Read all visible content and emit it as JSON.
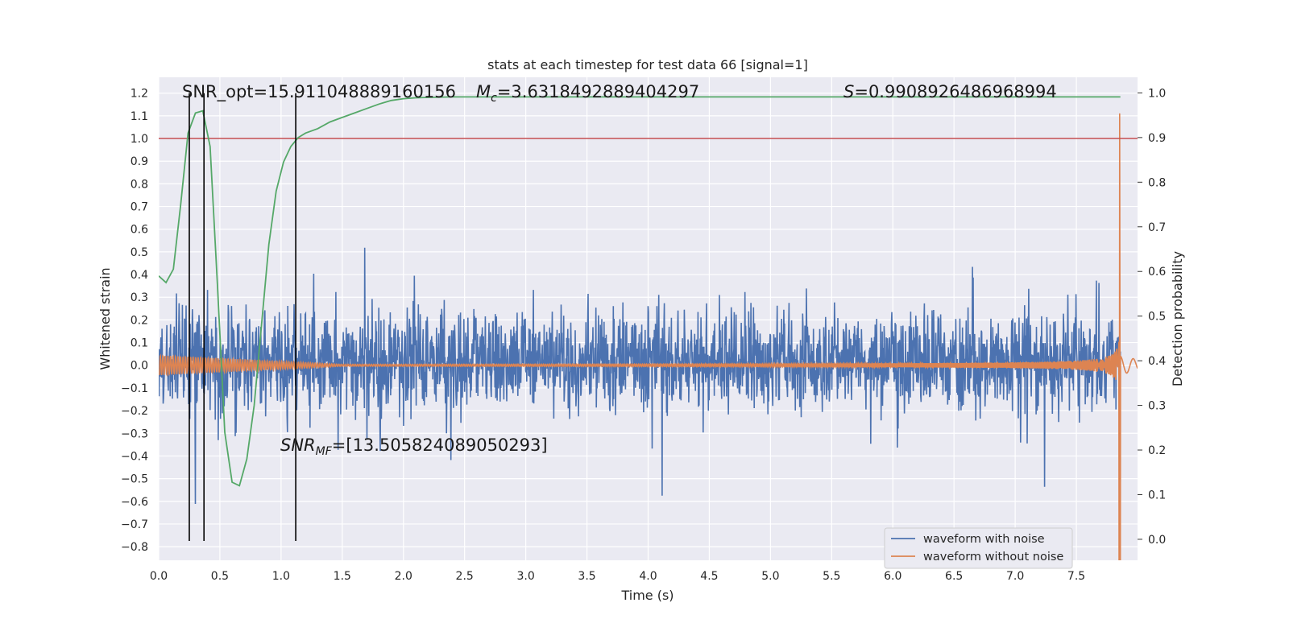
{
  "chart_data": {
    "type": "line",
    "title": "stats at each timestep for test data 66 [signal=1]",
    "xlabel": "Time (s)",
    "ylabel": "Whitened strain",
    "y2label": "Detection probability",
    "xlim": [
      0.0,
      8.0
    ],
    "ylim": [
      -0.86,
      1.27
    ],
    "y2lim": [
      -0.047,
      1.035
    ],
    "x_ticks": [
      0.0,
      0.5,
      1.0,
      1.5,
      2.0,
      2.5,
      3.0,
      3.5,
      4.0,
      4.5,
      5.0,
      5.5,
      6.0,
      6.5,
      7.0,
      7.5
    ],
    "x_tick_labels": [
      "0.0",
      "0.5",
      "1.0",
      "1.5",
      "2.0",
      "2.5",
      "3.0",
      "3.5",
      "4.0",
      "4.5",
      "5.0",
      "5.5",
      "6.0",
      "6.5",
      "7.0",
      "7.5"
    ],
    "y_ticks": [
      -0.8,
      -0.7,
      -0.6,
      -0.5,
      -0.4,
      -0.3,
      -0.2,
      -0.1,
      0.0,
      0.1,
      0.2,
      0.3,
      0.4,
      0.5,
      0.6,
      0.7,
      0.8,
      0.9,
      1.0,
      1.1,
      1.2
    ],
    "y_tick_labels": [
      "−0.8",
      "−0.7",
      "−0.6",
      "−0.5",
      "−0.4",
      "−0.3",
      "−0.2",
      "−0.1",
      "0.0",
      "0.1",
      "0.2",
      "0.3",
      "0.4",
      "0.5",
      "0.6",
      "0.7",
      "0.8",
      "0.9",
      "1.0",
      "1.1",
      "1.2"
    ],
    "y2_ticks": [
      0.0,
      0.1,
      0.2,
      0.3,
      0.4,
      0.5,
      0.6,
      0.7,
      0.8,
      0.9,
      1.0
    ],
    "y2_tick_labels": [
      "0.0",
      "0.1",
      "0.2",
      "0.3",
      "0.4",
      "0.5",
      "0.6",
      "0.7",
      "0.8",
      "0.9",
      "1.0"
    ],
    "grid": true,
    "legend_placement": "lower-right",
    "series": [
      {
        "name": "waveform with noise",
        "color": "#4c72b0",
        "noise_band": [
          -0.18,
          0.21
        ],
        "duration": 7.86
      },
      {
        "name": "waveform without noise",
        "color": "#dd8452",
        "chirp_end": 7.86,
        "peak_amplitude": 1.2
      },
      {
        "color": "#55a868",
        "axis": "right",
        "x": [
          0.0,
          0.06,
          0.12,
          0.18,
          0.24,
          0.3,
          0.36,
          0.42,
          0.48,
          0.54,
          0.6,
          0.66,
          0.72,
          0.78,
          0.84,
          0.9,
          0.96,
          1.02,
          1.08,
          1.14,
          1.2,
          1.3,
          1.4,
          1.5,
          1.6,
          1.7,
          1.8,
          1.9,
          2.0,
          2.1,
          2.2,
          2.4,
          2.6,
          3.0,
          4.0,
          5.0,
          6.0,
          7.0,
          7.86
        ],
        "y": [
          0.59,
          0.575,
          0.605,
          0.75,
          0.91,
          0.955,
          0.96,
          0.88,
          0.57,
          0.24,
          0.128,
          0.12,
          0.18,
          0.3,
          0.48,
          0.66,
          0.78,
          0.845,
          0.88,
          0.9,
          0.91,
          0.92,
          0.935,
          0.945,
          0.955,
          0.965,
          0.975,
          0.983,
          0.987,
          0.989,
          0.99,
          0.991,
          0.991,
          0.991,
          0.991,
          0.991,
          0.991,
          0.991,
          0.991
        ]
      }
    ],
    "threshold_line": {
      "value": 1.0,
      "color": "#c44e52"
    },
    "vertical_markers": [
      0.25,
      0.37,
      1.12
    ],
    "annotations": {
      "snr_opt": "SNR_opt=15.911048889160156",
      "mc_prefix": "M",
      "mc_sub": "c",
      "mc_value": "=3.6318492889404297",
      "s_prefix": "S",
      "s_value": "=0.9908926486968994",
      "snr_mf_prefix": "SNR",
      "snr_mf_sub": "MF",
      "snr_mf_value": "=[13.505824089050293]"
    },
    "colors": {
      "background": "#eaeaf2",
      "grid": "#ffffff",
      "noise": "#4c72b0",
      "clean": "#dd8452",
      "probability": "#55a868",
      "threshold": "#c44e52",
      "marker": "#000000"
    }
  }
}
